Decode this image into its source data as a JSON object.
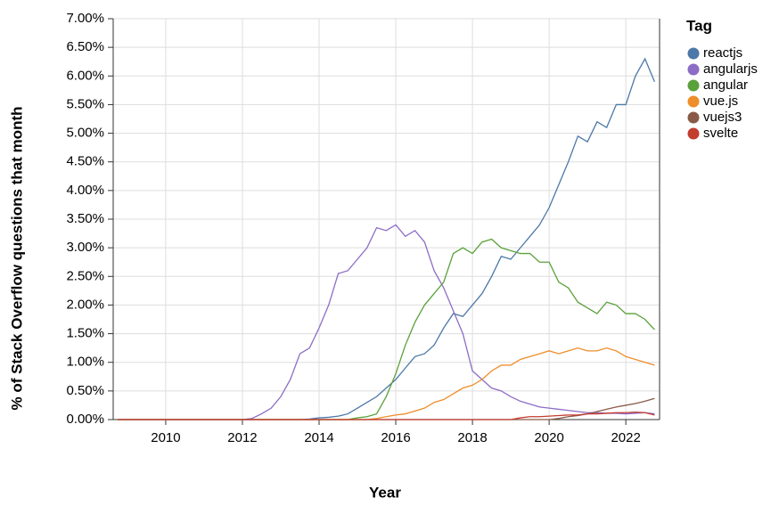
{
  "chart_data": {
    "type": "line",
    "x_label": "Year",
    "y_label": "% of Stack Overflow questions that month",
    "legend_title": "Tag",
    "legend_position": "right",
    "grid": true,
    "xlim": [
      2008.63,
      2022.88
    ],
    "xticks": [
      2010,
      2012,
      2014,
      2016,
      2018,
      2020,
      2022
    ],
    "ylim": [
      0,
      7
    ],
    "yticks": [
      {
        "value": 0,
        "label": "0.00%"
      },
      {
        "value": 0.5,
        "label": "0.50%"
      },
      {
        "value": 1,
        "label": "1.00%"
      },
      {
        "value": 1.5,
        "label": "1.50%"
      },
      {
        "value": 2,
        "label": "2.00%"
      },
      {
        "value": 2.5,
        "label": "2.50%"
      },
      {
        "value": 3,
        "label": "3.00%"
      },
      {
        "value": 3.5,
        "label": "3.50%"
      },
      {
        "value": 4,
        "label": "4.00%"
      },
      {
        "value": 4.5,
        "label": "4.50%"
      },
      {
        "value": 5,
        "label": "5.00%"
      },
      {
        "value": 5.5,
        "label": "5.50%"
      },
      {
        "value": 6,
        "label": "6.00%"
      },
      {
        "value": 6.5,
        "label": "6.50%"
      },
      {
        "value": 7,
        "label": "7.00%"
      }
    ],
    "x": [
      2008.75,
      2009,
      2009.25,
      2009.5,
      2009.75,
      2010,
      2010.25,
      2010.5,
      2010.75,
      2011,
      2011.25,
      2011.5,
      2011.75,
      2012,
      2012.25,
      2012.5,
      2012.75,
      2013,
      2013.25,
      2013.5,
      2013.75,
      2014,
      2014.25,
      2014.5,
      2014.75,
      2015,
      2015.25,
      2015.5,
      2015.75,
      2016,
      2016.25,
      2016.5,
      2016.75,
      2017,
      2017.25,
      2017.5,
      2017.75,
      2018,
      2018.25,
      2018.5,
      2018.75,
      2019,
      2019.25,
      2019.5,
      2019.75,
      2020,
      2020.25,
      2020.5,
      2020.75,
      2021,
      2021.25,
      2021.5,
      2021.75,
      2022,
      2022.25,
      2022.5,
      2022.75
    ],
    "series": [
      {
        "name": "reactjs",
        "color": "#4c78a8",
        "values": [
          0,
          0,
          0,
          0,
          0,
          0,
          0,
          0,
          0,
          0,
          0,
          0,
          0,
          0,
          0,
          0,
          0,
          0,
          0,
          0,
          0.01,
          0.03,
          0.04,
          0.06,
          0.1,
          0.2,
          0.3,
          0.4,
          0.55,
          0.7,
          0.9,
          1.1,
          1.15,
          1.3,
          1.6,
          1.85,
          1.8,
          2.0,
          2.2,
          2.5,
          2.85,
          2.8,
          3.0,
          3.2,
          3.4,
          3.7,
          4.1,
          4.5,
          4.95,
          4.85,
          5.2,
          5.1,
          5.5,
          5.5,
          6.0,
          6.3,
          5.9
        ]
      },
      {
        "name": "angularjs",
        "color": "#8d6cc6",
        "values": [
          0,
          0,
          0,
          0,
          0,
          0,
          0,
          0,
          0,
          0,
          0,
          0,
          0,
          0,
          0.02,
          0.1,
          0.2,
          0.4,
          0.7,
          1.15,
          1.25,
          1.6,
          2.0,
          2.55,
          2.6,
          2.8,
          3.0,
          3.35,
          3.3,
          3.4,
          3.2,
          3.3,
          3.1,
          2.6,
          2.3,
          1.9,
          1.5,
          0.85,
          0.7,
          0.55,
          0.5,
          0.4,
          0.32,
          0.27,
          0.22,
          0.2,
          0.18,
          0.16,
          0.14,
          0.12,
          0.12,
          0.11,
          0.11,
          0.1,
          0.11,
          0.12,
          0.1
        ]
      },
      {
        "name": "angular",
        "color": "#5aa13b",
        "values": [
          0,
          0,
          0,
          0,
          0,
          0,
          0,
          0,
          0,
          0,
          0,
          0,
          0,
          0,
          0,
          0,
          0,
          0,
          0,
          0,
          0,
          0,
          0,
          0,
          0,
          0.03,
          0.05,
          0.1,
          0.4,
          0.8,
          1.3,
          1.7,
          2.0,
          2.2,
          2.4,
          2.9,
          3.0,
          2.9,
          3.1,
          3.15,
          3.0,
          2.95,
          2.9,
          2.9,
          2.75,
          2.75,
          2.4,
          2.3,
          2.05,
          1.95,
          1.85,
          2.05,
          2.0,
          1.85,
          1.85,
          1.75,
          1.57
        ]
      },
      {
        "name": "vue.js",
        "color": "#ee8d2a",
        "values": [
          0,
          0,
          0,
          0,
          0,
          0,
          0,
          0,
          0,
          0,
          0,
          0,
          0,
          0,
          0,
          0,
          0,
          0,
          0,
          0,
          0,
          0,
          0,
          0,
          0,
          0,
          0,
          0.02,
          0.05,
          0.08,
          0.1,
          0.15,
          0.2,
          0.3,
          0.35,
          0.45,
          0.55,
          0.6,
          0.7,
          0.85,
          0.95,
          0.95,
          1.05,
          1.1,
          1.15,
          1.2,
          1.15,
          1.2,
          1.25,
          1.2,
          1.2,
          1.25,
          1.2,
          1.1,
          1.05,
          1.0,
          0.95
        ]
      },
      {
        "name": "vuejs3",
        "color": "#8a5a48",
        "values": [
          0,
          0,
          0,
          0,
          0,
          0,
          0,
          0,
          0,
          0,
          0,
          0,
          0,
          0,
          0,
          0,
          0,
          0,
          0,
          0,
          0,
          0,
          0,
          0,
          0,
          0,
          0,
          0,
          0,
          0,
          0,
          0,
          0,
          0,
          0,
          0,
          0,
          0,
          0,
          0,
          0,
          0,
          0,
          0,
          0,
          0,
          0.02,
          0.05,
          0.07,
          0.1,
          0.14,
          0.18,
          0.22,
          0.25,
          0.28,
          0.32,
          0.37
        ]
      },
      {
        "name": "svelte",
        "color": "#c33c30",
        "values": [
          0,
          0,
          0,
          0,
          0,
          0,
          0,
          0,
          0,
          0,
          0,
          0,
          0,
          0,
          0,
          0,
          0,
          0,
          0,
          0,
          0,
          0,
          0,
          0,
          0,
          0,
          0,
          0,
          0,
          0,
          0,
          0,
          0,
          0,
          0,
          0,
          0,
          0,
          0,
          0,
          0,
          0,
          0.03,
          0.05,
          0.05,
          0.06,
          0.07,
          0.08,
          0.08,
          0.1,
          0.1,
          0.11,
          0.12,
          0.12,
          0.13,
          0.12,
          0.08
        ]
      }
    ]
  }
}
